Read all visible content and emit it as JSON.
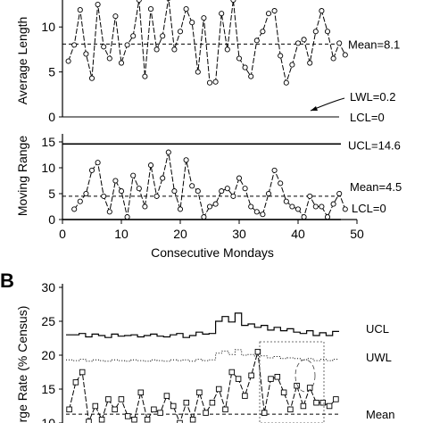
{
  "panel_labels": {
    "b": "B"
  },
  "chart_data": [
    {
      "type": "line",
      "panel": "A-top",
      "ylabel": "Average Length",
      "ylim": [
        0,
        13
      ],
      "yticks": [
        0,
        5,
        10
      ],
      "x": [
        1,
        2,
        3,
        4,
        5,
        6,
        7,
        8,
        9,
        10,
        11,
        12,
        13,
        14,
        15,
        16,
        17,
        18,
        19,
        20,
        21,
        22,
        23,
        24,
        25,
        26,
        27,
        28,
        29,
        30,
        31,
        32,
        33,
        34,
        35,
        36,
        37,
        38,
        39,
        40,
        41,
        42,
        43,
        44,
        45,
        46,
        47,
        48
      ],
      "series": [
        {
          "values": [
            6.2,
            8.0,
            11.9,
            7.0,
            4.3,
            12.5,
            7.8,
            6.5,
            11.2,
            6.0,
            8.0,
            9.0,
            13.0,
            4.5,
            12.0,
            7.5,
            9.0,
            13.2,
            7.5,
            9.5,
            12.0,
            10.5,
            5.0,
            11.0,
            3.8,
            3.9,
            11.5,
            7.5,
            13.0,
            6.5,
            5.5,
            4.5,
            8.5,
            9.5,
            11.5,
            11.8,
            6.8,
            3.8,
            5.8,
            8.2,
            8.6,
            6.0,
            9.5,
            11.8,
            9.5,
            6.5,
            8.2,
            6.9
          ]
        }
      ],
      "reference_lines": [
        {
          "label": "Mean=8.1",
          "value": 8.1,
          "style": "dashed"
        },
        {
          "label": "LWL=0.2",
          "value": 0.2,
          "style": "none"
        },
        {
          "label": "LCL=0",
          "value": 0,
          "style": "solid"
        }
      ]
    },
    {
      "type": "line",
      "panel": "A-bottom",
      "xlabel": "Consecutive Mondays",
      "ylabel": "Moving Range",
      "xlim": [
        0,
        50
      ],
      "xticks": [
        0,
        10,
        20,
        30,
        40,
        50
      ],
      "ylim": [
        0,
        15
      ],
      "yticks": [
        0,
        5,
        10,
        15
      ],
      "x": [
        2,
        3,
        4,
        5,
        6,
        7,
        8,
        9,
        10,
        11,
        12,
        13,
        14,
        15,
        16,
        17,
        18,
        19,
        20,
        21,
        22,
        23,
        24,
        25,
        26,
        27,
        28,
        29,
        30,
        31,
        32,
        33,
        34,
        35,
        36,
        37,
        38,
        39,
        40,
        41,
        42,
        43,
        44,
        45,
        46,
        47,
        48
      ],
      "series": [
        {
          "values": [
            2.0,
            3.5,
            5.0,
            9.5,
            11.0,
            4.5,
            1.5,
            7.5,
            5.5,
            0.5,
            8.5,
            6.0,
            2.5,
            10.5,
            4.5,
            8.0,
            13.0,
            5.5,
            2.0,
            11.5,
            6.5,
            5.5,
            0.5,
            2.5,
            3.0,
            5.5,
            6.0,
            4.5,
            8.0,
            6.0,
            2.5,
            1.5,
            1.0,
            5.0,
            9.5,
            7.0,
            3.5,
            2.5,
            2.0,
            0.5,
            4.5,
            2.5,
            2.5,
            0.5,
            3.0,
            5.0,
            2.0
          ]
        }
      ],
      "reference_lines": [
        {
          "label": "UCL=14.6",
          "value": 14.6,
          "style": "solid"
        },
        {
          "label": "Mean=4.5",
          "value": 4.5,
          "style": "dashed"
        },
        {
          "label": "LCL=0",
          "value": 0,
          "style": "solid"
        }
      ]
    },
    {
      "type": "line",
      "panel": "B",
      "ylabel": "rge Rate (% Census)",
      "ylim": [
        10,
        30
      ],
      "yticks": [
        10,
        15,
        20,
        25,
        30
      ],
      "series": [
        {
          "name": "UCL",
          "values": [
            23.0,
            23.0,
            23.2,
            22.7,
            23.1,
            22.9,
            22.6,
            23.1,
            22.8,
            22.9,
            23.0,
            22.7,
            22.9,
            23.1,
            22.8,
            22.7,
            23.0,
            23.2,
            22.6,
            22.9,
            23.4,
            23.1,
            23.2,
            25.0,
            25.7,
            24.9,
            26.2,
            24.4,
            24.6,
            24.1,
            24.4,
            23.7,
            24.1,
            23.6,
            23.9,
            23.4,
            23.2,
            23.6,
            22.9,
            23.3,
            22.9,
            23.5
          ]
        },
        {
          "name": "UWL",
          "values": [
            19.3,
            19.2,
            19.4,
            19.1,
            19.3,
            19.2,
            19.1,
            19.3,
            19.2,
            19.1,
            19.3,
            19.2,
            19.1,
            19.3,
            19.2,
            19.1,
            19.3,
            19.2,
            19.3,
            19.1,
            19.4,
            19.2,
            19.3,
            20.3,
            20.6,
            20.1,
            20.8,
            20.0,
            20.1,
            19.8,
            19.9,
            19.6,
            19.8,
            19.5,
            19.6,
            19.5,
            19.3,
            19.5,
            19.2,
            19.4,
            19.2,
            19.4
          ]
        },
        {
          "name": "rate",
          "values": [
            12.0,
            16.0,
            17.5,
            10.2,
            12.5,
            10.5,
            13.5,
            12.0,
            13.5,
            11.0,
            10.5,
            14.5,
            10.5,
            12.0,
            11.5,
            14.0,
            12.5,
            10.0,
            13.0,
            10.5,
            14.5,
            11.5,
            13.0,
            15.0,
            12.0,
            17.5,
            16.5,
            14.0,
            17.0,
            20.5,
            11.5,
            16.5,
            16.8,
            14.5,
            12.0,
            15.5,
            12.5,
            15.2,
            13.0,
            13.0,
            12.5,
            13.5
          ]
        }
      ],
      "reference_lines": [
        {
          "label": "UCL",
          "style": "solid"
        },
        {
          "label": "UWL",
          "style": "dotted"
        },
        {
          "label": "Mean",
          "value": 11.3,
          "style": "dashed"
        }
      ]
    }
  ]
}
